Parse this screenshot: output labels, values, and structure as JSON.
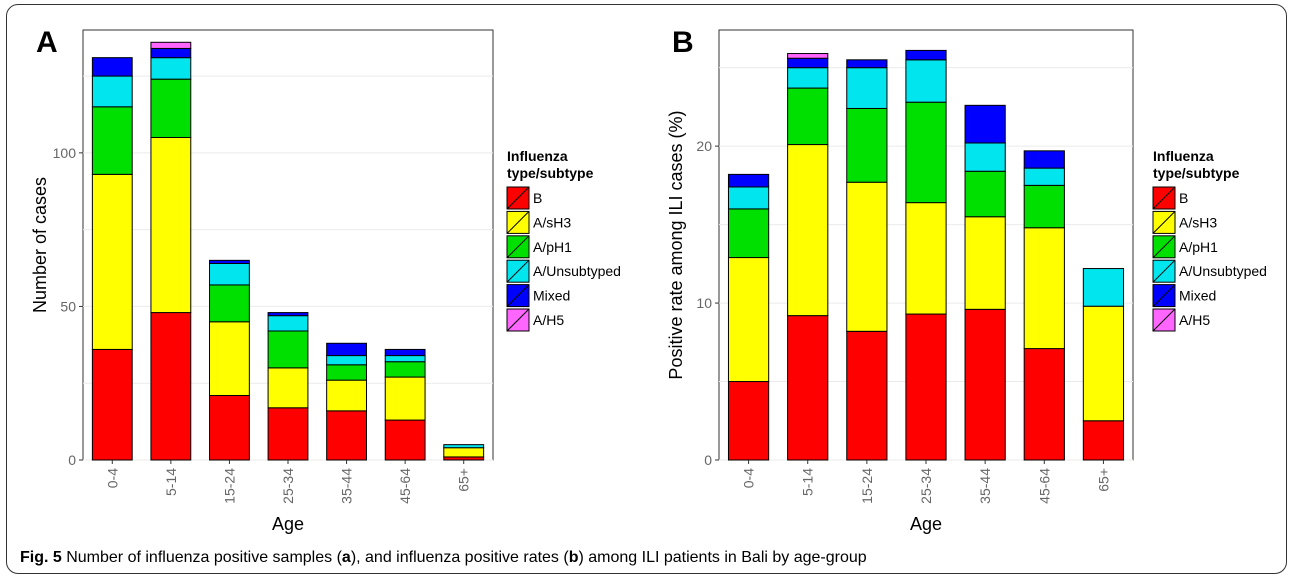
{
  "chart_data": [
    {
      "type": "bar",
      "panel": "A",
      "xlabel": "Age",
      "ylabel": "Number of cases",
      "ylim": [
        0,
        140
      ],
      "yticks": [
        0,
        50,
        100
      ],
      "categories": [
        "0-4",
        "5-14",
        "15-24",
        "25-34",
        "35-44",
        "45-64",
        "65+"
      ],
      "series": [
        {
          "name": "B",
          "color": "#ff0000",
          "values": [
            36,
            48,
            21,
            17,
            16,
            13,
            1
          ]
        },
        {
          "name": "A/sH3",
          "color": "#ffff00",
          "values": [
            57,
            57,
            24,
            13,
            10,
            14,
            3
          ]
        },
        {
          "name": "A/pH1",
          "color": "#00e000",
          "values": [
            22,
            19,
            12,
            12,
            5,
            5,
            0
          ]
        },
        {
          "name": "A/Unsubtyped",
          "color": "#00e5ee",
          "values": [
            10,
            7,
            7,
            5,
            3,
            2,
            1
          ]
        },
        {
          "name": "Mixed",
          "color": "#0000ff",
          "values": [
            6,
            3,
            1,
            1,
            4,
            2,
            0
          ]
        },
        {
          "name": "A/H5",
          "color": "#ff66ff",
          "values": [
            0,
            2,
            0,
            0,
            0,
            0,
            0
          ]
        }
      ],
      "legend": {
        "title": "Influenza type/subtype",
        "position": "right"
      },
      "grid": true
    },
    {
      "type": "bar",
      "panel": "B",
      "xlabel": "Age",
      "ylabel": "Positive rate among ILI cases (%)",
      "ylim": [
        0,
        27.4
      ],
      "yticks": [
        0,
        10,
        20
      ],
      "categories": [
        "0-4",
        "5-14",
        "15-24",
        "25-34",
        "35-44",
        "45-64",
        "65+"
      ],
      "series": [
        {
          "name": "B",
          "color": "#ff0000",
          "values": [
            5.0,
            9.2,
            8.2,
            9.3,
            9.6,
            7.1,
            2.5
          ]
        },
        {
          "name": "A/sH3",
          "color": "#ffff00",
          "values": [
            7.9,
            10.9,
            9.5,
            7.1,
            5.9,
            7.7,
            7.3
          ]
        },
        {
          "name": "A/pH1",
          "color": "#00e000",
          "values": [
            3.1,
            3.6,
            4.7,
            6.4,
            2.9,
            2.7,
            0
          ]
        },
        {
          "name": "A/Unsubtyped",
          "color": "#00e5ee",
          "values": [
            1.4,
            1.3,
            2.6,
            2.7,
            1.8,
            1.1,
            2.4
          ]
        },
        {
          "name": "Mixed",
          "color": "#0000ff",
          "values": [
            0.8,
            0.6,
            0.5,
            0.6,
            2.4,
            1.1,
            0
          ]
        },
        {
          "name": "A/H5",
          "color": "#ff66ff",
          "values": [
            0,
            0.3,
            0,
            0,
            0,
            0,
            0
          ]
        }
      ],
      "legend": {
        "title": "Influenza type/subtype",
        "position": "right"
      },
      "grid": true
    }
  ],
  "caption": {
    "label": "Fig. 5",
    "text_1": " Number of influenza positive samples (",
    "bold_a": "a",
    "text_2": "), and influenza positive rates (",
    "bold_b": "b",
    "text_3": ") among ILI patients in Bali by age-group"
  }
}
